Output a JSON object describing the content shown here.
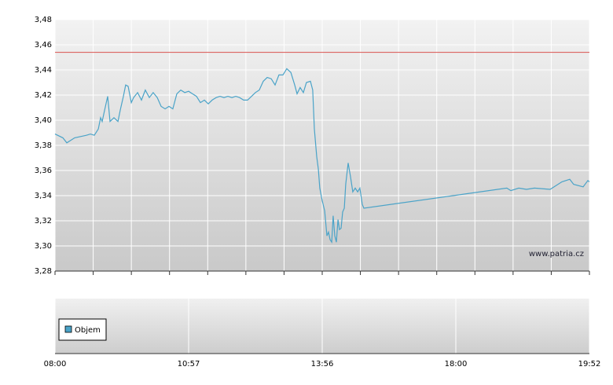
{
  "chart_data": {
    "type": "line",
    "watermark": "www.patria.cz",
    "legend": "Objem",
    "xlim": [
      0,
      4
    ],
    "xticks": [
      {
        "value": 0,
        "label": "08:00"
      },
      {
        "value": 1,
        "label": "10:57"
      },
      {
        "value": 2,
        "label": "13:56"
      },
      {
        "value": 3,
        "label": "18:00"
      },
      {
        "value": 4,
        "label": "19:52"
      }
    ],
    "ylim": [
      3.28,
      3.48
    ],
    "yticks": [
      {
        "value": 3.28,
        "label": "3,28"
      },
      {
        "value": 3.3,
        "label": "3,30"
      },
      {
        "value": 3.32,
        "label": "3,32"
      },
      {
        "value": 3.34,
        "label": "3,34"
      },
      {
        "value": 3.36,
        "label": "3,36"
      },
      {
        "value": 3.38,
        "label": "3,38"
      },
      {
        "value": 3.4,
        "label": "3,40"
      },
      {
        "value": 3.42,
        "label": "3,42"
      },
      {
        "value": 3.44,
        "label": "3,44"
      },
      {
        "value": 3.46,
        "label": "3,46"
      },
      {
        "value": 3.48,
        "label": "3,48"
      }
    ],
    "grid": true,
    "reference_line": {
      "value": 3.454,
      "color": "#d9534f"
    },
    "series": [
      {
        "color": "#4aa3c8",
        "x": [
          0,
          0.059,
          0.088,
          0.147,
          0.235,
          0.265,
          0.294,
          0.324,
          0.341,
          0.353,
          0.371,
          0.394,
          0.412,
          0.441,
          0.471,
          0.488,
          0.512,
          0.529,
          0.547,
          0.571,
          0.588,
          0.618,
          0.647,
          0.676,
          0.706,
          0.735,
          0.765,
          0.794,
          0.824,
          0.853,
          0.882,
          0.912,
          0.941,
          0.971,
          1,
          1.029,
          1.059,
          1.088,
          1.118,
          1.147,
          1.176,
          1.206,
          1.235,
          1.265,
          1.294,
          1.324,
          1.353,
          1.382,
          1.412,
          1.441,
          1.471,
          1.5,
          1.529,
          1.559,
          1.588,
          1.618,
          1.647,
          1.676,
          1.706,
          1.735,
          1.765,
          1.794,
          1.812,
          1.835,
          1.859,
          1.882,
          1.912,
          1.929,
          1.941,
          1.959,
          1.971,
          1.982,
          2,
          2.018,
          2.035,
          2.047,
          2.059,
          2.071,
          2.082,
          2.094,
          2.106,
          2.118,
          2.129,
          2.141,
          2.153,
          2.165,
          2.176,
          2.194,
          2.212,
          2.229,
          2.247,
          2.265,
          2.282,
          2.3,
          2.312,
          3.382,
          3.412,
          3.471,
          3.529,
          3.588,
          3.706,
          3.794,
          3.853,
          3.882,
          3.953,
          3.988,
          4
        ],
        "values": [
          3.389,
          3.386,
          3.382,
          3.386,
          3.388,
          3.389,
          3.388,
          3.393,
          3.402,
          3.399,
          3.408,
          3.419,
          3.399,
          3.402,
          3.399,
          3.408,
          3.419,
          3.428,
          3.427,
          3.414,
          3.418,
          3.422,
          3.416,
          3.424,
          3.418,
          3.422,
          3.418,
          3.411,
          3.409,
          3.411,
          3.409,
          3.421,
          3.424,
          3.422,
          3.423,
          3.421,
          3.419,
          3.414,
          3.416,
          3.413,
          3.416,
          3.418,
          3.419,
          3.418,
          3.419,
          3.418,
          3.419,
          3.418,
          3.416,
          3.416,
          3.419,
          3.422,
          3.424,
          3.431,
          3.434,
          3.433,
          3.428,
          3.436,
          3.436,
          3.441,
          3.438,
          3.428,
          3.421,
          3.426,
          3.422,
          3.43,
          3.431,
          3.424,
          3.393,
          3.371,
          3.361,
          3.346,
          3.336,
          3.328,
          3.308,
          3.311,
          3.305,
          3.303,
          3.324,
          3.308,
          3.303,
          3.321,
          3.313,
          3.314,
          3.327,
          3.33,
          3.349,
          3.366,
          3.355,
          3.343,
          3.346,
          3.343,
          3.346,
          3.333,
          3.33,
          3.346,
          3.344,
          3.346,
          3.345,
          3.346,
          3.345,
          3.351,
          3.353,
          3.349,
          3.347,
          3.352,
          3.351
        ]
      }
    ]
  }
}
